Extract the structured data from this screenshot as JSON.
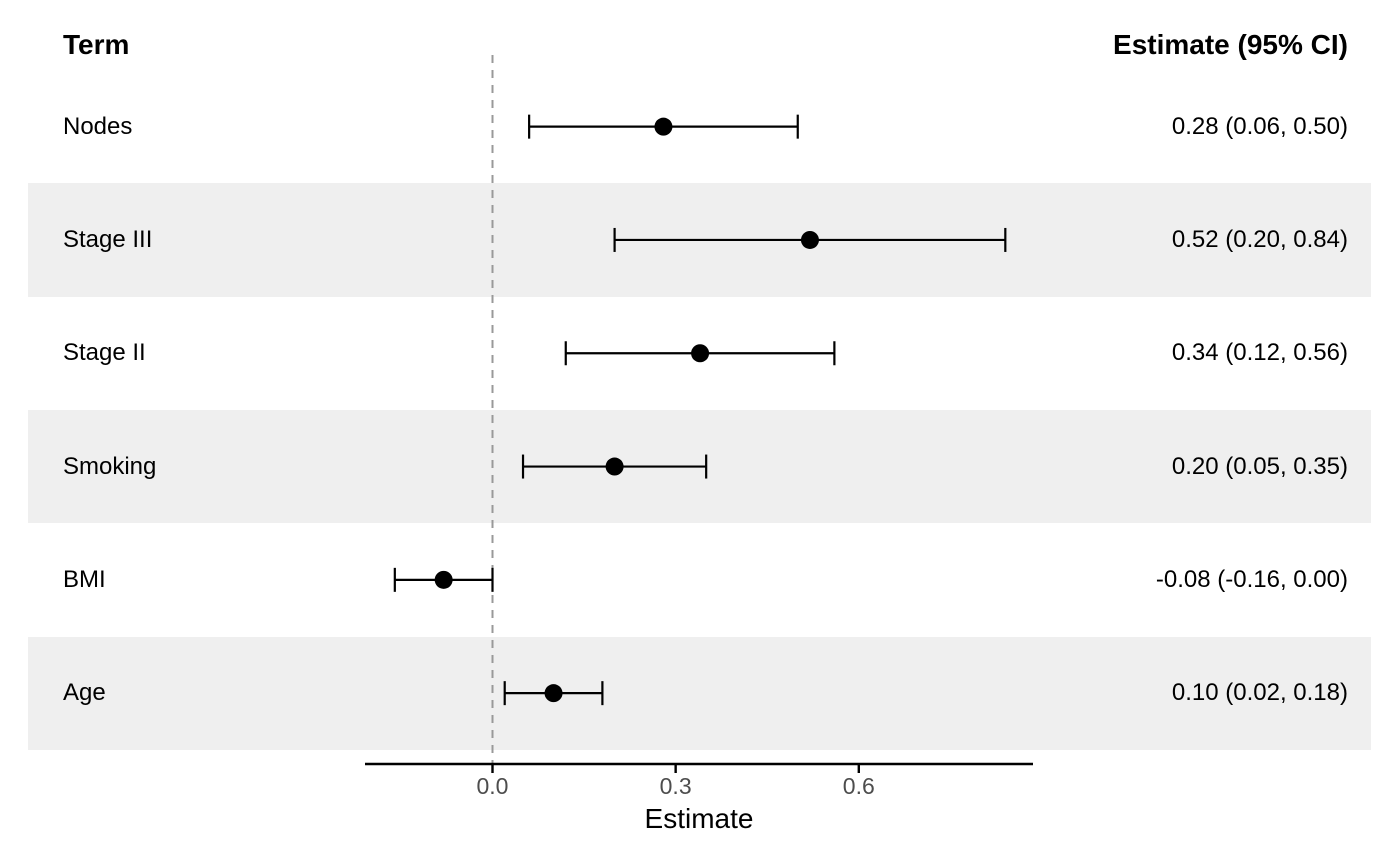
{
  "chart_data": {
    "type": "scatter",
    "variant": "forest-plot",
    "columns": {
      "term_header": "Term",
      "estimate_header": "Estimate (95% CI)"
    },
    "rows": [
      {
        "term": "Nodes",
        "estimate": 0.28,
        "ci_low": 0.06,
        "ci_high": 0.5,
        "label": "0.28 (0.06, 0.50)",
        "striped": false
      },
      {
        "term": "Stage III",
        "estimate": 0.52,
        "ci_low": 0.2,
        "ci_high": 0.84,
        "label": "0.52 (0.20, 0.84)",
        "striped": true
      },
      {
        "term": "Stage II",
        "estimate": 0.34,
        "ci_low": 0.12,
        "ci_high": 0.56,
        "label": "0.34 (0.12, 0.56)",
        "striped": false
      },
      {
        "term": "Smoking",
        "estimate": 0.2,
        "ci_low": 0.05,
        "ci_high": 0.35,
        "label": "0.20 (0.05, 0.35)",
        "striped": true
      },
      {
        "term": "BMI",
        "estimate": -0.08,
        "ci_low": -0.16,
        "ci_high": 0.0,
        "label": "-0.08 (-0.16, 0.00)",
        "striped": false
      },
      {
        "term": "Age",
        "estimate": 0.1,
        "ci_low": 0.02,
        "ci_high": 0.18,
        "label": "0.10 (0.02, 0.18)",
        "striped": true
      }
    ],
    "xlabel": "Estimate",
    "x_ticks": [
      0.0,
      0.3,
      0.6
    ],
    "x_tick_labels": [
      "0.0",
      "0.3",
      "0.6"
    ],
    "xlim": [
      -0.21,
      0.89
    ],
    "reference_line": 0,
    "grid": false,
    "legend": "none",
    "colors": {
      "stripe": "#efefef",
      "reference_line": "#999999",
      "marker": "#000000",
      "axis": "#000000",
      "tick_text": "#4d4d4d"
    }
  }
}
